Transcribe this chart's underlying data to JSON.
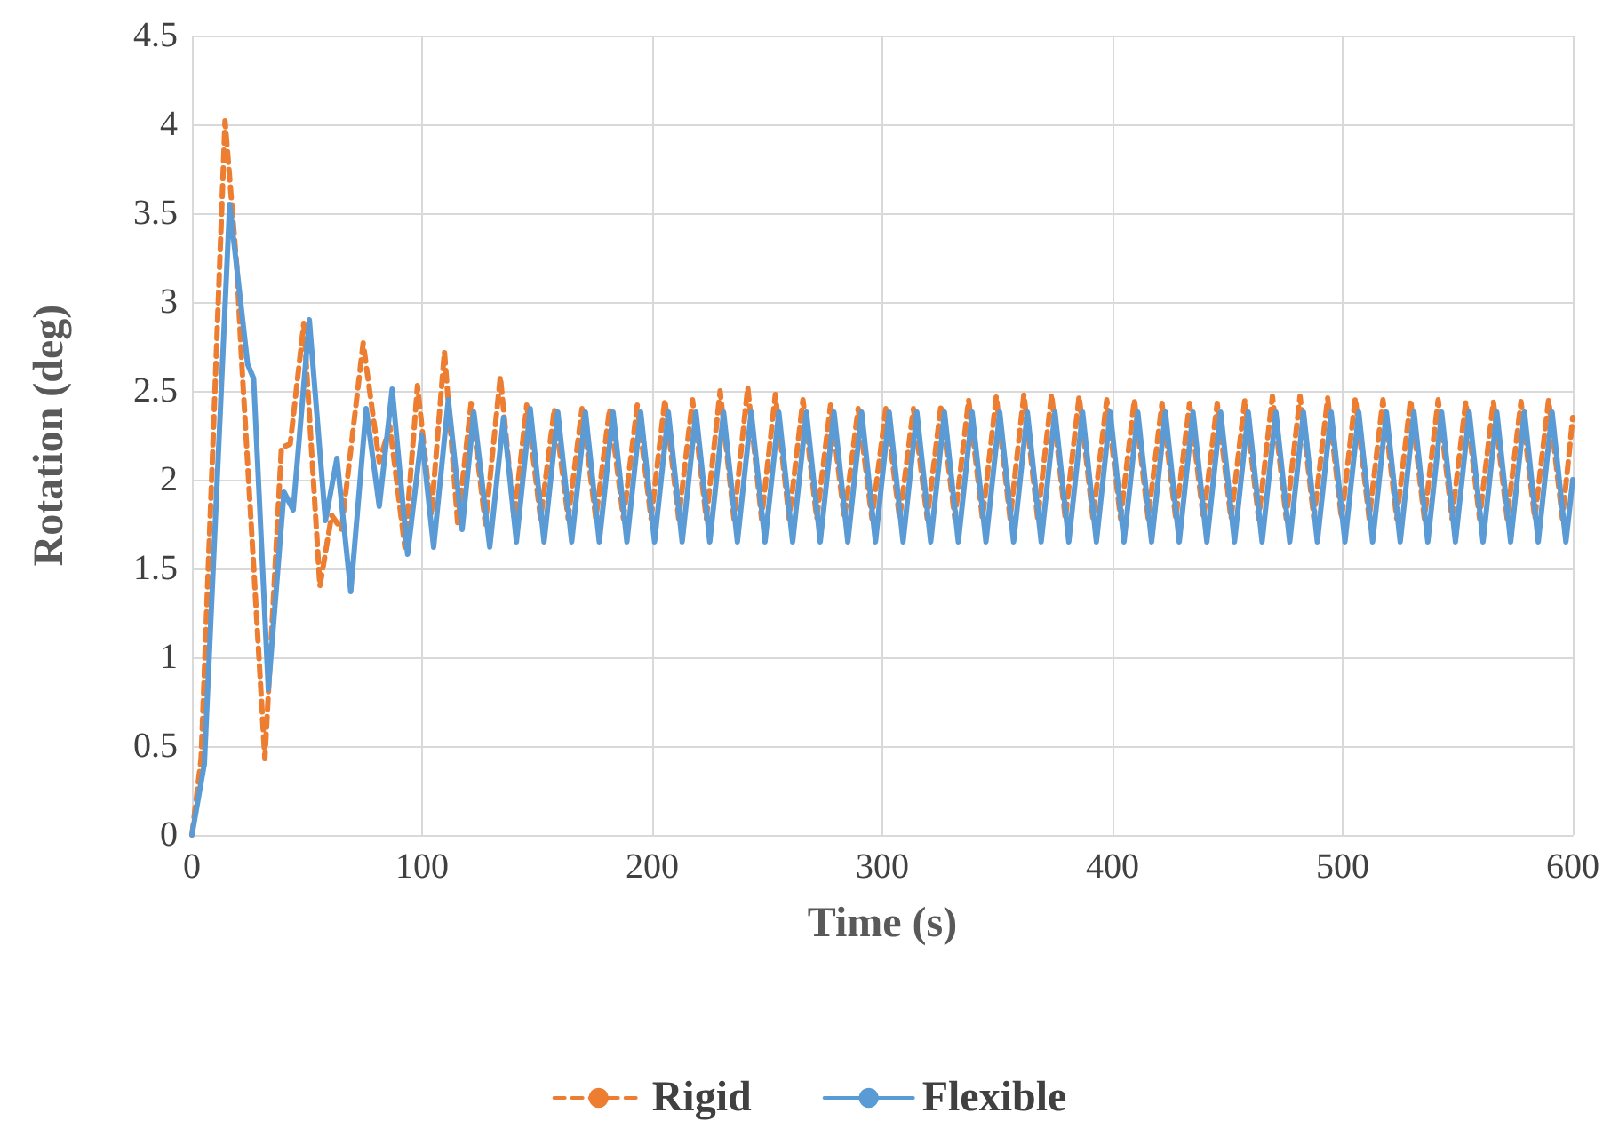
{
  "chart_data": {
    "type": "line",
    "xlabel": "Time (s)",
    "ylabel": "Rotation (deg)",
    "xlim": [
      0,
      600
    ],
    "xticks": [
      0,
      100,
      200,
      300,
      400,
      500,
      600
    ],
    "ylim": [
      0,
      4.5
    ],
    "yticks": [
      0,
      0.5,
      1,
      1.5,
      2,
      2.5,
      3,
      3.5,
      4,
      4.5
    ],
    "grid": true,
    "legend": "bottom",
    "marker": "none",
    "series": [
      {
        "name": "Rigid",
        "color": "#ed7d31",
        "line_style": "dashed",
        "x": [
          0,
          4,
          14.4,
          19.5,
          21.6,
          31.7,
          38.9,
          42.7,
          48.6,
          55.6,
          60.7,
          65,
          74.4,
          81.4,
          86,
          92.5,
          98,
          104,
          109.7,
          115.5,
          121.3,
          127.5,
          134,
          140,
          145.5,
          151.5,
          157.5,
          163.5,
          169.5,
          175.5,
          181.5,
          187.5,
          193.5,
          199.5,
          205.5,
          211.5,
          217.5,
          223.5,
          229.5,
          235.5,
          241.5,
          247.5,
          253.5,
          259.5,
          265.5,
          271.5,
          277.5,
          283.5,
          289.5,
          295.5,
          301.5,
          307.5,
          313.5,
          319.5,
          325.5,
          331.5,
          337.5,
          343.5,
          349.5,
          355.5,
          361.5,
          367.5,
          373.5,
          379.5,
          385.5,
          391.5,
          397.5,
          403.5,
          409.5,
          415.5,
          421.5,
          427.5,
          433.5,
          439.5,
          445.5,
          451.5,
          457.5,
          463.5,
          469.5,
          475.5,
          481.5,
          487.5,
          493.5,
          499.5,
          505.5,
          511.5,
          517.5,
          523.5,
          529.5,
          535.5,
          541.5,
          547.5,
          553.5,
          559.5,
          565.5,
          571.5,
          577.5,
          583.5,
          589.5,
          595.5,
          600
        ],
        "values": [
          0,
          0.43,
          4.02,
          3.2,
          2.67,
          0.43,
          2.18,
          2.2,
          2.88,
          1.4,
          1.8,
          1.72,
          2.77,
          2.1,
          2.3,
          1.62,
          2.53,
          1.8,
          2.72,
          1.75,
          2.43,
          1.75,
          2.58,
          1.78,
          2.42,
          1.78,
          2.4,
          1.78,
          2.4,
          1.78,
          2.4,
          1.78,
          2.42,
          1.78,
          2.45,
          1.78,
          2.45,
          1.78,
          2.5,
          1.78,
          2.52,
          1.78,
          2.48,
          1.78,
          2.45,
          1.78,
          2.42,
          1.78,
          2.4,
          1.78,
          2.4,
          1.78,
          2.4,
          1.78,
          2.42,
          1.78,
          2.45,
          1.78,
          2.47,
          1.78,
          2.48,
          1.78,
          2.48,
          1.78,
          2.47,
          1.78,
          2.45,
          1.78,
          2.45,
          1.78,
          2.43,
          1.78,
          2.43,
          1.78,
          2.43,
          1.78,
          2.45,
          1.78,
          2.47,
          1.78,
          2.47,
          1.78,
          2.46,
          1.78,
          2.46,
          1.78,
          2.45,
          1.78,
          2.45,
          1.78,
          2.45,
          1.78,
          2.44,
          1.78,
          2.44,
          1.78,
          2.44,
          1.78,
          2.45,
          1.78,
          2.35
        ]
      },
      {
        "name": "Flexible",
        "color": "#5b9bd5",
        "line_style": "solid",
        "x": [
          0,
          5.4,
          16.4,
          24.2,
          26.8,
          33.2,
          40,
          44,
          51,
          58,
          63,
          69,
          75.7,
          81.4,
          87,
          93.7,
          99.8,
          105,
          111.4,
          117.4,
          122.5,
          129.4,
          135.4,
          141,
          147,
          153,
          159,
          165,
          171,
          177,
          183,
          189,
          195,
          201,
          207,
          213,
          219,
          225,
          231,
          237,
          243,
          249,
          255,
          261,
          267,
          273,
          279,
          285,
          291,
          297,
          303,
          309,
          315,
          321,
          327,
          333,
          339,
          345,
          351,
          357,
          363,
          369,
          375,
          381,
          387,
          393,
          399,
          405,
          411,
          417,
          423,
          429,
          435,
          441,
          447,
          453,
          459,
          465,
          471,
          477,
          483,
          489,
          495,
          501,
          507,
          513,
          519,
          525,
          531,
          537,
          543,
          549,
          555,
          561,
          567,
          573,
          579,
          585,
          591,
          597,
          600
        ],
        "values": [
          0,
          0.4,
          3.55,
          2.65,
          2.57,
          0.82,
          1.93,
          1.83,
          2.9,
          1.77,
          2.12,
          1.37,
          2.4,
          1.85,
          2.51,
          1.58,
          2.25,
          1.62,
          2.45,
          1.72,
          2.38,
          1.62,
          2.35,
          1.65,
          2.4,
          1.65,
          2.38,
          1.65,
          2.38,
          1.65,
          2.38,
          1.65,
          2.38,
          1.65,
          2.38,
          1.65,
          2.38,
          1.65,
          2.38,
          1.65,
          2.38,
          1.65,
          2.38,
          1.65,
          2.38,
          1.65,
          2.38,
          1.65,
          2.38,
          1.65,
          2.38,
          1.65,
          2.38,
          1.65,
          2.38,
          1.65,
          2.38,
          1.65,
          2.38,
          1.65,
          2.38,
          1.65,
          2.38,
          1.65,
          2.38,
          1.65,
          2.38,
          1.65,
          2.38,
          1.65,
          2.38,
          1.65,
          2.38,
          1.65,
          2.38,
          1.65,
          2.38,
          1.65,
          2.38,
          1.65,
          2.38,
          1.65,
          2.38,
          1.65,
          2.38,
          1.65,
          2.38,
          1.65,
          2.38,
          1.65,
          2.38,
          1.65,
          2.38,
          1.65,
          2.38,
          1.65,
          2.38,
          1.65,
          2.38,
          1.65,
          2.0
        ]
      }
    ]
  }
}
